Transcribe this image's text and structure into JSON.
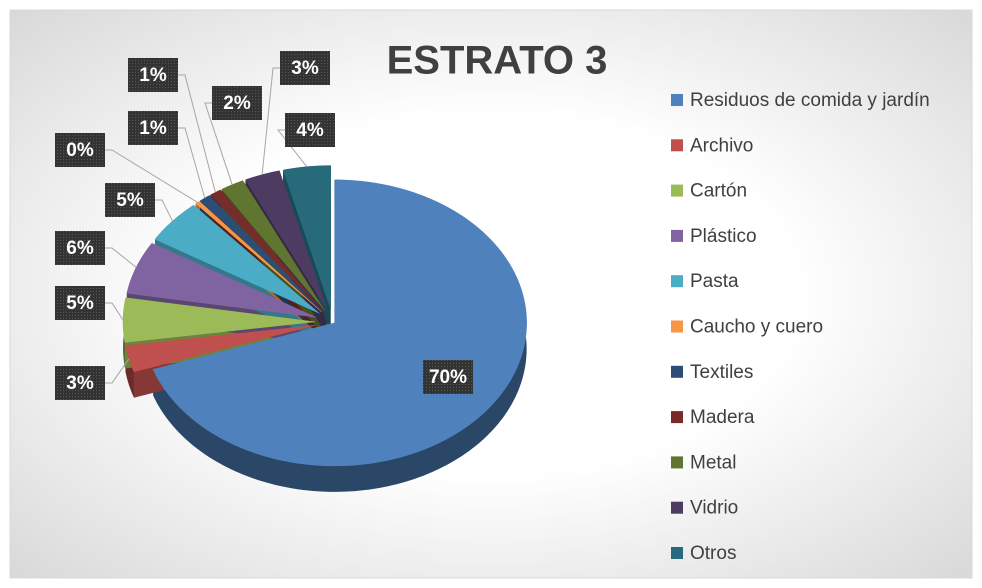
{
  "chart_data": {
    "type": "pie",
    "title": "ESTRATO 3",
    "categories": [
      "Residuos de comida y jardín",
      "Archivo",
      "Cartón",
      "Plástico",
      "Pasta",
      "Caucho y cuero",
      "Textiles",
      "Madera",
      "Metal",
      "Vidrio",
      "Otros"
    ],
    "values": [
      70,
      3,
      5,
      6,
      5,
      0.4,
      1,
      1,
      2,
      3,
      4
    ],
    "value_labels": [
      "70%",
      "3%",
      "5%",
      "6%",
      "5%",
      "0%",
      "1%",
      "1%",
      "2%",
      "3%",
      "4%"
    ],
    "colors": [
      "#4f81bd",
      "#c0504d",
      "#9bbb59",
      "#8064a2",
      "#4bacc6",
      "#f79646",
      "#2c4d75",
      "#772c2a",
      "#5f7530",
      "#4d3b62",
      "#276a7c"
    ],
    "legend": "right"
  }
}
